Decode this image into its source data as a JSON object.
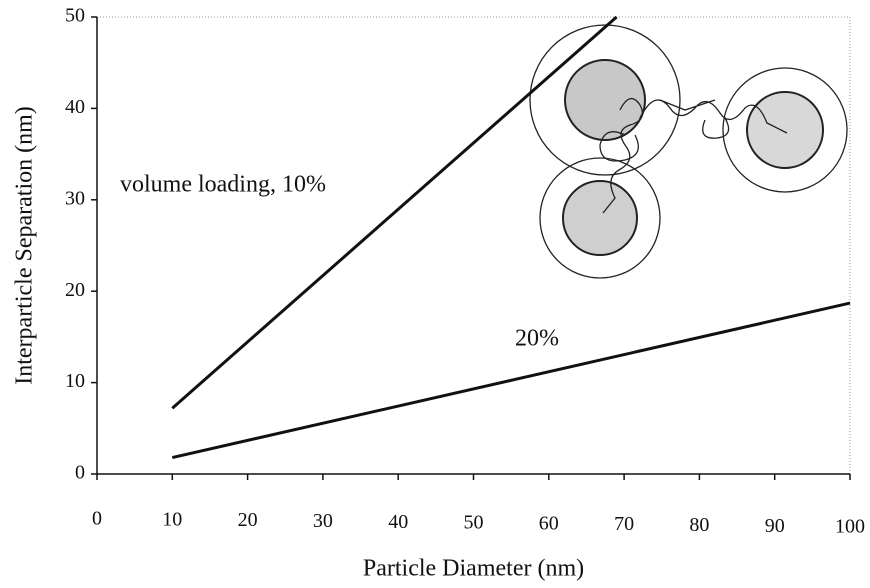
{
  "chart_data": {
    "type": "line",
    "xlabel": "Particle Diameter (nm)",
    "ylabel": "Interparticle Separation (nm)",
    "xlim": [
      0,
      100
    ],
    "ylim": [
      0,
      50
    ],
    "xticks": [
      0,
      10,
      20,
      30,
      40,
      50,
      60,
      70,
      80,
      90,
      100
    ],
    "yticks": [
      0,
      10,
      20,
      30,
      40,
      50
    ],
    "series": [
      {
        "name": "volume loading, 10%",
        "color": "#111111",
        "x": [
          10,
          69
        ],
        "values": [
          7.2,
          50
        ]
      },
      {
        "name": "20%",
        "color": "#111111",
        "x": [
          10,
          100
        ],
        "values": [
          1.8,
          18.7
        ]
      }
    ]
  }
}
